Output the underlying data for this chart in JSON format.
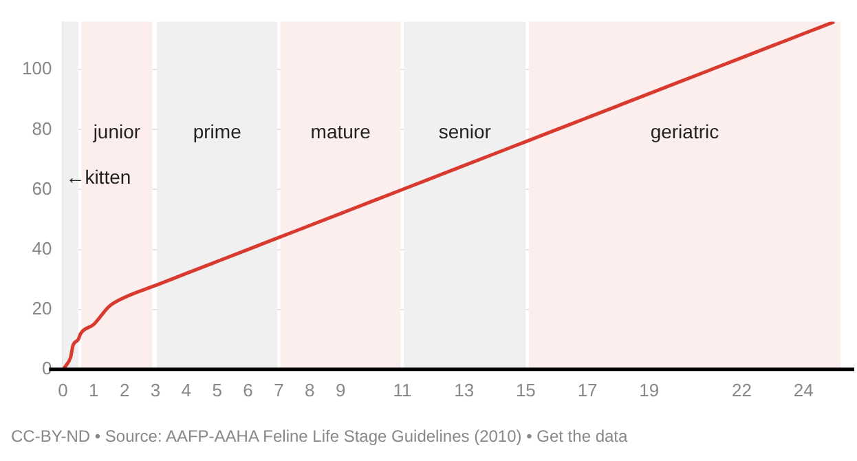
{
  "chart_data": {
    "type": "line",
    "x": [
      0,
      0.083,
      0.25,
      0.33,
      0.5,
      0.58,
      1,
      1.5,
      2,
      3,
      4,
      5,
      6,
      7,
      8,
      9,
      10,
      11,
      12,
      13,
      14,
      15,
      16,
      17,
      18,
      19,
      20,
      21,
      22,
      23,
      24,
      25
    ],
    "series": [
      {
        "color": "#d93a2f",
        "values": [
          0,
          1,
          4,
          8,
          10,
          12,
          15,
          21,
          24,
          28,
          32,
          36,
          40,
          44,
          48,
          52,
          56,
          60,
          64,
          68,
          72,
          76,
          80,
          84,
          88,
          92,
          96,
          100,
          104,
          108,
          112,
          116
        ]
      }
    ],
    "xlim": [
      0,
      25.2
    ],
    "xticks": [
      0,
      1,
      2,
      3,
      4,
      5,
      6,
      7,
      8,
      9,
      11,
      13,
      15,
      17,
      19,
      22,
      24
    ],
    "ylim": [
      0,
      116
    ],
    "yticks": [
      0,
      20,
      40,
      60,
      80,
      100
    ],
    "grid": "y",
    "legend": false,
    "marker": "none",
    "line_style": "solid",
    "bands": [
      {
        "axis": "x",
        "from": 0,
        "to": 0.5,
        "label": "←kitten",
        "color": "#f0f0f0"
      },
      {
        "axis": "x",
        "from": 0.6,
        "to": 2.9,
        "label": "junior",
        "color": "#fdeeee"
      },
      {
        "axis": "x",
        "from": 3.05,
        "to": 6.95,
        "label": "prime",
        "color": "#f0f0f0"
      },
      {
        "axis": "x",
        "from": 7.05,
        "to": 10.95,
        "label": "mature",
        "color": "#fdeeee"
      },
      {
        "axis": "x",
        "from": 11.05,
        "to": 15,
        "label": "senior",
        "color": "#f0f0f0"
      },
      {
        "axis": "x",
        "from": 15.1,
        "to": 25.2,
        "label": "geriatric",
        "color": "#fdeeee"
      }
    ],
    "annotations": [
      "CC-BY-ND • Source: AAFP-AAHA Feline Life Stage Guidelines (2010) • Get the data"
    ]
  }
}
